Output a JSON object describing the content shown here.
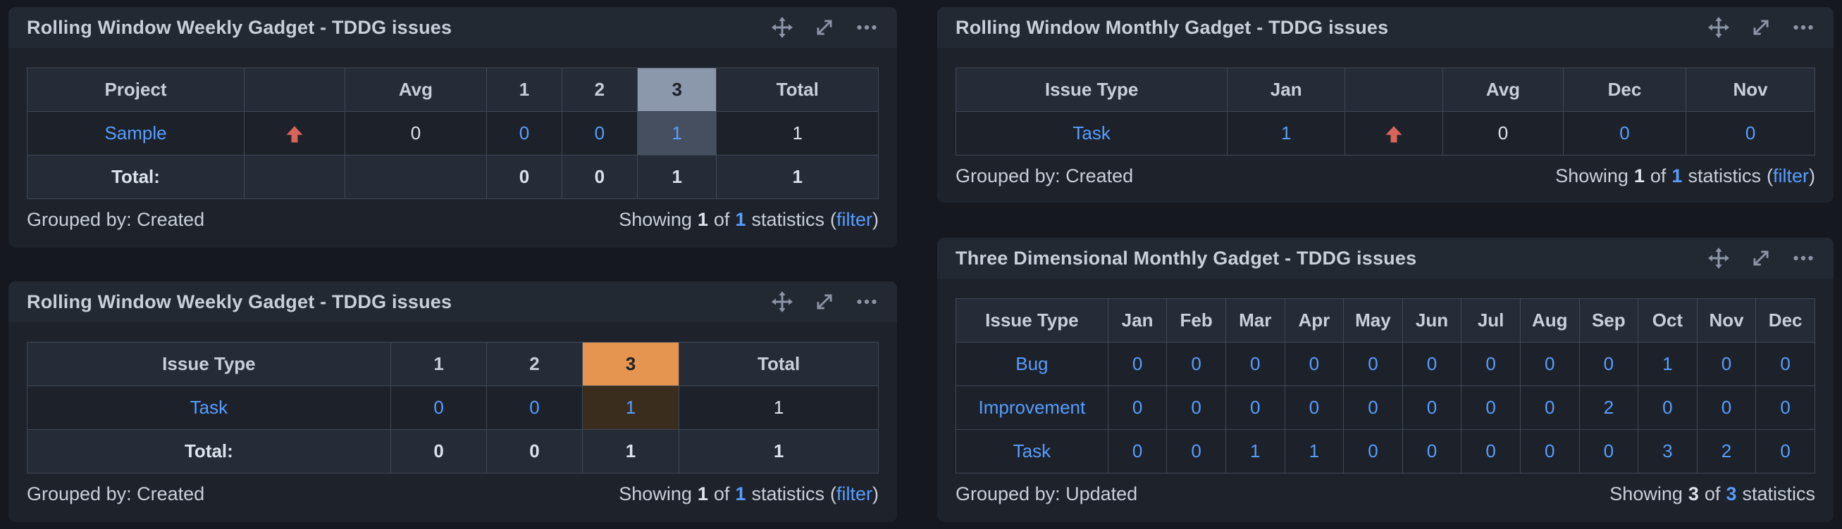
{
  "colors": {
    "page_background": "#15181E",
    "panel_background": "#1E232B",
    "panel_header_background": "#232933",
    "table_header_background": "#262C37",
    "table_row_background": "#1D222A",
    "table_border": "#3F4857",
    "link_blue": "#579DFF",
    "text_primary": "#C9CFDA",
    "text_value": "#DDE3ED",
    "icon_gray": "#8C95A6",
    "highlight_slate_header": "#8B97AA",
    "highlight_slate_cell": "#454F60",
    "highlight_orange_header": "#E69550",
    "highlight_brown_cell": "#3B2D1E",
    "trend_arrow_red": "#D96459"
  },
  "gadget_tools": [
    {
      "name": "move-icon"
    },
    {
      "name": "expand-icon"
    },
    {
      "name": "more-menu-icon"
    }
  ],
  "gadgets": [
    {
      "title": "Rolling Window Weekly Gadget - TDDG issues",
      "table": {
        "columns": [
          {
            "t": "Project"
          },
          {
            "t": ""
          },
          {
            "t": "Avg"
          },
          {
            "t": "1"
          },
          {
            "t": "2"
          },
          {
            "t": "3",
            "hl": "slate"
          },
          {
            "t": "Total"
          }
        ],
        "rows": [
          {
            "cells": [
              {
                "t": "Sample",
                "s": "link",
                "n": "project-link"
              },
              {
                "icon": "trend-up"
              },
              {
                "t": "0",
                "s": "plain"
              },
              {
                "t": "0",
                "s": "link"
              },
              {
                "t": "0",
                "s": "link"
              },
              {
                "t": "1",
                "s": "link",
                "hl": "slate"
              },
              {
                "t": "1",
                "s": "plain"
              }
            ]
          }
        ],
        "total": {
          "label": "Total:",
          "cells": [
            "",
            "",
            "0",
            "0",
            "1",
            "1"
          ]
        }
      },
      "footer": {
        "grouped_by": "Grouped by: Created",
        "showing_prefix": "Showing",
        "shown_count": "1",
        "of_label": "of",
        "total_count": "1",
        "statistics_label": "statistics",
        "filter_open": "(",
        "filter_label": "filter",
        "filter_close": ")"
      }
    },
    {
      "title": "Rolling Window Weekly Gadget - TDDG issues",
      "table": {
        "columns": [
          {
            "t": "Issue Type"
          },
          {
            "t": "1"
          },
          {
            "t": "2"
          },
          {
            "t": "3",
            "hl": "orange"
          },
          {
            "t": "Total"
          }
        ],
        "rows": [
          {
            "cells": [
              {
                "t": "Task",
                "s": "link",
                "n": "issue-type-link"
              },
              {
                "t": "0",
                "s": "link"
              },
              {
                "t": "0",
                "s": "link"
              },
              {
                "t": "1",
                "s": "link",
                "hl": "brown"
              },
              {
                "t": "1",
                "s": "plain"
              }
            ]
          }
        ],
        "total": {
          "label": "Total:",
          "cells": [
            "0",
            "0",
            "1",
            "1"
          ]
        }
      },
      "footer": {
        "grouped_by": "Grouped by: Created",
        "showing_prefix": "Showing",
        "shown_count": "1",
        "of_label": "of",
        "total_count": "1",
        "statistics_label": "statistics",
        "filter_open": "(",
        "filter_label": "filter",
        "filter_close": ")"
      }
    },
    {
      "title": "Rolling Window Monthly Gadget - TDDG issues",
      "table": {
        "columns": [
          {
            "t": "Issue Type"
          },
          {
            "t": "Jan"
          },
          {
            "t": ""
          },
          {
            "t": "Avg"
          },
          {
            "t": "Dec"
          },
          {
            "t": "Nov"
          }
        ],
        "rows": [
          {
            "cells": [
              {
                "t": "Task",
                "s": "link",
                "n": "issue-type-link"
              },
              {
                "t": "1",
                "s": "link"
              },
              {
                "icon": "trend-up"
              },
              {
                "t": "0",
                "s": "plain"
              },
              {
                "t": "0",
                "s": "link"
              },
              {
                "t": "0",
                "s": "link"
              }
            ]
          }
        ]
      },
      "footer": {
        "grouped_by": "Grouped by: Created",
        "showing_prefix": "Showing",
        "shown_count": "1",
        "of_label": "of",
        "total_count": "1",
        "statistics_label": "statistics",
        "filter_open": "(",
        "filter_label": "filter",
        "filter_close": ")"
      }
    },
    {
      "title": "Three Dimensional Monthly Gadget - TDDG issues",
      "table": {
        "columns": [
          {
            "t": "Issue Type"
          },
          {
            "t": "Jan"
          },
          {
            "t": "Feb"
          },
          {
            "t": "Mar"
          },
          {
            "t": "Apr"
          },
          {
            "t": "May"
          },
          {
            "t": "Jun"
          },
          {
            "t": "Jul"
          },
          {
            "t": "Aug"
          },
          {
            "t": "Sep"
          },
          {
            "t": "Oct"
          },
          {
            "t": "Nov"
          },
          {
            "t": "Dec"
          }
        ],
        "rows": [
          {
            "cells": [
              {
                "t": "Bug",
                "s": "link",
                "n": "issue-type-link"
              },
              {
                "t": "0",
                "s": "link"
              },
              {
                "t": "0",
                "s": "link"
              },
              {
                "t": "0",
                "s": "link"
              },
              {
                "t": "0",
                "s": "link"
              },
              {
                "t": "0",
                "s": "link"
              },
              {
                "t": "0",
                "s": "link"
              },
              {
                "t": "0",
                "s": "link"
              },
              {
                "t": "0",
                "s": "link"
              },
              {
                "t": "0",
                "s": "link"
              },
              {
                "t": "1",
                "s": "link"
              },
              {
                "t": "0",
                "s": "link"
              },
              {
                "t": "0",
                "s": "link"
              }
            ]
          },
          {
            "cells": [
              {
                "t": "Improvement",
                "s": "link",
                "n": "issue-type-link"
              },
              {
                "t": "0",
                "s": "link"
              },
              {
                "t": "0",
                "s": "link"
              },
              {
                "t": "0",
                "s": "link"
              },
              {
                "t": "0",
                "s": "link"
              },
              {
                "t": "0",
                "s": "link"
              },
              {
                "t": "0",
                "s": "link"
              },
              {
                "t": "0",
                "s": "link"
              },
              {
                "t": "0",
                "s": "link"
              },
              {
                "t": "2",
                "s": "link"
              },
              {
                "t": "0",
                "s": "link"
              },
              {
                "t": "0",
                "s": "link"
              },
              {
                "t": "0",
                "s": "link"
              }
            ]
          },
          {
            "cells": [
              {
                "t": "Task",
                "s": "link",
                "n": "issue-type-link"
              },
              {
                "t": "0",
                "s": "link"
              },
              {
                "t": "0",
                "s": "link"
              },
              {
                "t": "1",
                "s": "link"
              },
              {
                "t": "1",
                "s": "link"
              },
              {
                "t": "0",
                "s": "link"
              },
              {
                "t": "0",
                "s": "link"
              },
              {
                "t": "0",
                "s": "link"
              },
              {
                "t": "0",
                "s": "link"
              },
              {
                "t": "0",
                "s": "link"
              },
              {
                "t": "3",
                "s": "link"
              },
              {
                "t": "2",
                "s": "link"
              },
              {
                "t": "0",
                "s": "link"
              }
            ]
          }
        ]
      },
      "footer": {
        "grouped_by": "Grouped by: Updated",
        "showing_prefix": "Showing",
        "shown_count": "3",
        "of_label": "of",
        "total_count": "3",
        "statistics_label": "statistics"
      }
    }
  ]
}
